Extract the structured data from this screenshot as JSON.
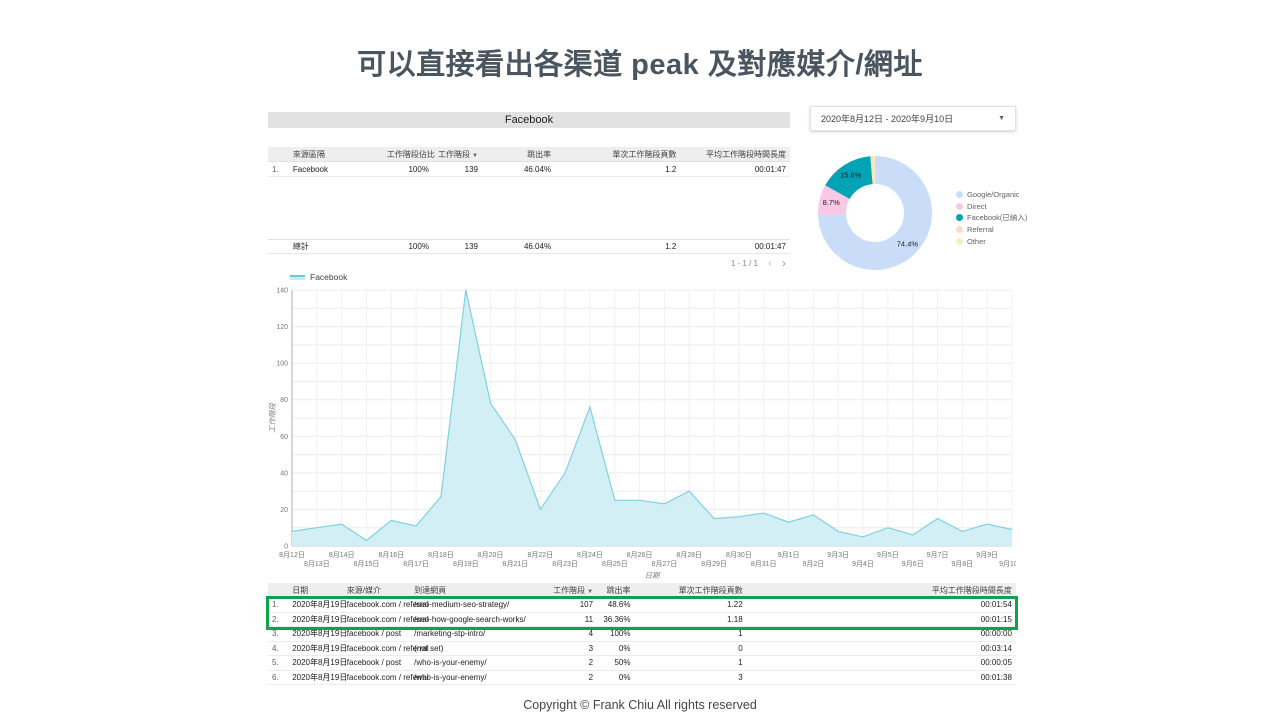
{
  "slide": {
    "title": "可以直接看出各渠道 peak 及對應媒介/網址",
    "footer": "Copyright © Frank Chiu All rights reserved"
  },
  "report": {
    "panel_title": "Facebook",
    "date_range": {
      "value": "2020年8月12日 - 2020年9月10日"
    },
    "sort_indicator": "▼",
    "summary_table": {
      "columns": [
        "來源區隔",
        "工作階段佔比",
        "工作階段",
        "跳出率",
        "單次工作階段頁數",
        "平均工作階段時間長度"
      ],
      "sort_column": "工作階段",
      "rows": [
        {
          "index": "1.",
          "cells": [
            "Facebook",
            "100%",
            "139",
            "46.04%",
            "1.2",
            "00:01:47"
          ]
        }
      ],
      "total_label": "總計",
      "total_cells": [
        "100%",
        "139",
        "46.04%",
        "1.2",
        "00:01:47"
      ],
      "pagination": {
        "range": "1 - 1 / 1",
        "prev": "‹",
        "next": "›"
      }
    },
    "detail_table": {
      "columns": [
        "日期",
        "來源/媒介",
        "到達網頁",
        "工作階段",
        "跳出率",
        "單次工作階段頁數",
        "平均工作階段時間長度"
      ],
      "sort_column": "工作階段",
      "highlight_color": "#0fa14d",
      "rows": [
        {
          "index": "1.",
          "highlight": true,
          "cells": [
            "2020年8月19日",
            "facebook.com / referral",
            "/seo-medium-seo-strategy/",
            "107",
            "48.6%",
            "1.22",
            "00:01:54"
          ]
        },
        {
          "index": "2.",
          "highlight": true,
          "cells": [
            "2020年8月19日",
            "facebook.com / referral",
            "/seo-how-google-search-works/",
            "11",
            "36.36%",
            "1.18",
            "00:01:15"
          ]
        },
        {
          "index": "3.",
          "highlight": false,
          "cells": [
            "2020年8月19日",
            "facebook / post",
            "/marketing-stp-intro/",
            "4",
            "100%",
            "1",
            "00:00:00"
          ]
        },
        {
          "index": "4.",
          "highlight": false,
          "cells": [
            "2020年8月19日",
            "facebook.com / referral",
            "(not set)",
            "3",
            "0%",
            "0",
            "00:03:14"
          ]
        },
        {
          "index": "5.",
          "highlight": false,
          "cells": [
            "2020年8月19日",
            "facebook / post",
            "/who-is-your-enemy/",
            "2",
            "50%",
            "1",
            "00:00:05"
          ]
        },
        {
          "index": "6.",
          "highlight": false,
          "cells": [
            "2020年8月19日",
            "facebook.com / referral",
            "/who-is-your-enemy/",
            "2",
            "0%",
            "3",
            "00:01:38"
          ]
        }
      ]
    }
  },
  "chart_data": [
    {
      "type": "pie",
      "style": "donut",
      "labels": [
        "Google/Organic",
        "Direct",
        "Facebook(已納入)",
        "Referral",
        "Other"
      ],
      "values": [
        74.4,
        8.7,
        15.6,
        0.8,
        0.5
      ],
      "slice_labels": [
        "74.4%",
        "8.7%",
        "15.6%",
        "",
        ""
      ],
      "colors": [
        "#c9ddf8",
        "#f9c8e4",
        "#00a3b5",
        "#f7dfc2",
        "#faedc4"
      ],
      "legend_position": "right"
    },
    {
      "type": "area",
      "series": [
        {
          "name": "Facebook",
          "values": [
            8,
            10,
            12,
            3,
            14,
            11,
            27,
            140,
            78,
            58,
            20,
            40,
            76,
            25,
            25,
            23,
            30,
            15,
            16,
            18,
            13,
            17,
            8,
            5,
            10,
            6,
            15,
            8,
            12,
            9
          ]
        }
      ],
      "x": [
        "8月12日",
        "8月13日",
        "8月14日",
        "8月15日",
        "8月16日",
        "8月17日",
        "8月18日",
        "8月19日",
        "8月20日",
        "8月21日",
        "8月22日",
        "8月23日",
        "8月24日",
        "8月25日",
        "8月26日",
        "8月27日",
        "8月28日",
        "8月29日",
        "8月30日",
        "8月31日",
        "9月1日",
        "9月2日",
        "9月3日",
        "9月4日",
        "9月5日",
        "9月6日",
        "9月7日",
        "9月8日",
        "9月9日",
        "9月10日"
      ],
      "xlabel": "日期",
      "ylabel": "工作階段",
      "ylim": [
        0,
        140
      ],
      "ytick_step": 20,
      "grid": true,
      "line_color": "#7fd1e0",
      "fill_color": "#d3eff6",
      "legend_position": "top-left"
    }
  ]
}
